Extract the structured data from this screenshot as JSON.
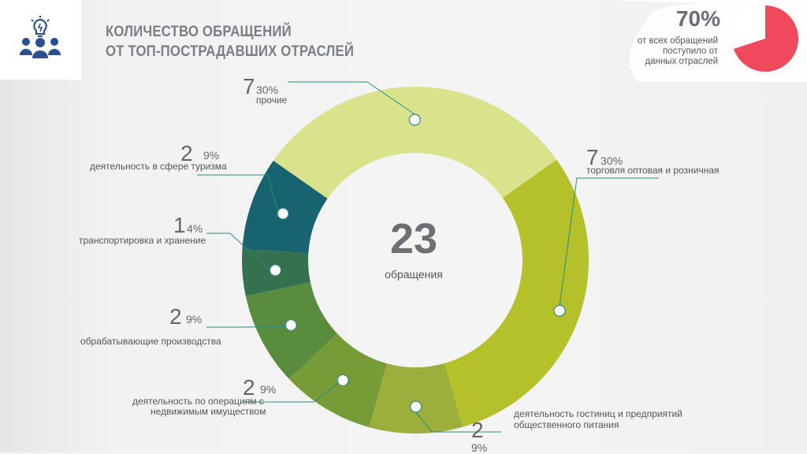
{
  "title": {
    "line1": "КОЛИЧЕСТВО ОБРАЩЕНИЙ",
    "line2": "ОТ ТОП-ПОСТРАДАВШИХ ОТРАСЛЕЙ"
  },
  "badge": {
    "percent": "70%",
    "note_line1": "от всех обращений",
    "note_line2": "поступило от",
    "note_line3": "данных отраслей",
    "fraction": 0.7
  },
  "colors": {
    "accent": "#f0485d",
    "segments": [
      "#d9e38c",
      "#b5c12a",
      "#9cae3c",
      "#779b37",
      "#5a8c3e",
      "#357050",
      "#176370"
    ]
  },
  "chart_data": {
    "type": "pie",
    "subtype": "donut",
    "total": 23,
    "total_label": "обращения",
    "segments": [
      {
        "label": "прочие",
        "count": 7,
        "percent": "30%"
      },
      {
        "label": "торговля оптовая и розничная",
        "count": 7,
        "percent": "30%"
      },
      {
        "label": "деятельность гостиниц и предприятий общественного питания",
        "count": 2,
        "percent": "9%"
      },
      {
        "label": "деятельность по операциям с недвижимым имуществом",
        "count": 2,
        "percent": "9%"
      },
      {
        "label": "обрабатывающие производства",
        "count": 2,
        "percent": "9%"
      },
      {
        "label": "транспортировка и хранение",
        "count": 1,
        "percent": "4%"
      },
      {
        "label": "деятельность в сфере туризма",
        "count": 2,
        "percent": "9%"
      }
    ]
  },
  "labels": {
    "other": {
      "count": "7",
      "percent": "30%",
      "text": "прочие"
    },
    "trade": {
      "count": "7",
      "percent": "30%",
      "text": "торговля оптовая и розничная"
    },
    "hotels": {
      "count": "2",
      "percent": "9%",
      "text1": "деятельность гостиниц и предприятий",
      "text2": "общественного питания"
    },
    "realty": {
      "count": "2",
      "percent": "9%",
      "text1": "деятельность по операциям с",
      "text2": "недвижимым имуществом"
    },
    "manufacturing": {
      "count": "2",
      "percent": "9%",
      "text": "обрабатывающие производства"
    },
    "transport": {
      "count": "1",
      "percent": "4%",
      "text": "транспортировка и хранение"
    },
    "tourism": {
      "count": "2",
      "percent": "9%",
      "text": "деятельность в сфере туризма"
    }
  }
}
